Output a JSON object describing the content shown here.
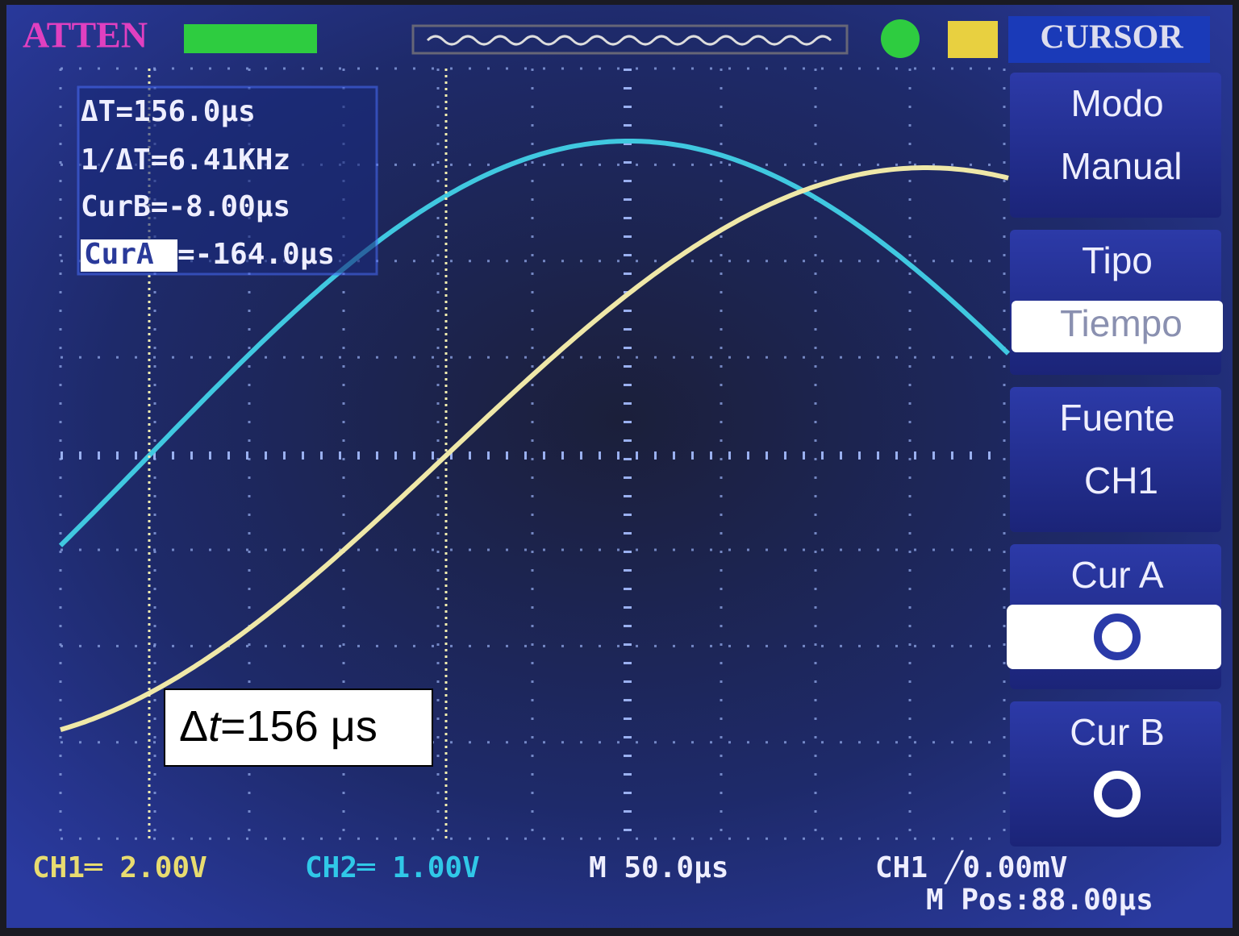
{
  "header": {
    "brand": "ATTEN",
    "menu_title": "CURSOR"
  },
  "readout": {
    "delta_t": "ΔT=156.0μs",
    "inv_delta_t": "1/ΔT=6.41KHz",
    "cur_b": "CurB=-8.00μs",
    "cur_a_label": "CurA",
    "cur_a_value": "=-164.0μs"
  },
  "menu": [
    {
      "label": "Modo",
      "value": "Manual"
    },
    {
      "label": "Tipo",
      "value": "Tiempo"
    },
    {
      "label": "Fuente",
      "value": "CH1"
    },
    {
      "label": "Cur A"
    },
    {
      "label": "Cur B"
    }
  ],
  "status": {
    "ch1": "CH1═ 2.00V",
    "ch2": "CH2═ 1.00V",
    "timebase": "M 50.0μs",
    "trigger": "CH1 ╱0.00mV",
    "position": "M Pos:88.00μs"
  },
  "annotation": {
    "delta": "Δ",
    "var": "t",
    "rest": "=156 μs"
  }
}
